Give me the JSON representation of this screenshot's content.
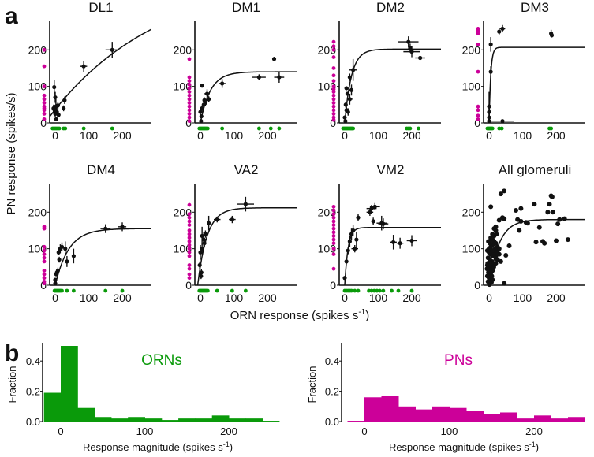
{
  "colors": {
    "orn": "#0a9a0a",
    "pn": "#cc0099",
    "points": "#111111"
  },
  "panel_labels": {
    "a": "a",
    "b": "b"
  },
  "labels": {
    "ylabel": "PN response (spikes/s)",
    "xlabel_main": "ORN response (spikes s",
    "xlabel_sup": "-1",
    "xlabel_end": ")",
    "hist_ylabel": "Fraction",
    "hist_xlabel_main": "Response magnitude (spikes s",
    "hist_xlabel_sup": "-1",
    "hist_xlabel_end": ")"
  },
  "chart_data": [
    {
      "type": "scatter",
      "title": "DL1",
      "xticks": [
        "0",
        "100",
        "200"
      ],
      "yticks": [
        "0",
        "100",
        "200"
      ],
      "xlim": [
        -16,
        287
      ],
      "ylim": [
        0,
        278
      ],
      "fit": {
        "x0": -20,
        "y0": 13,
        "rmax": 400,
        "tau": 327
      },
      "points": [
        [
          170,
          200,
          20,
          22
        ],
        [
          85,
          155,
          10,
          15
        ],
        [
          28,
          62,
          3,
          10
        ],
        [
          25,
          40,
          3,
          8
        ],
        [
          -3,
          98,
          2,
          20
        ],
        [
          0,
          70,
          3,
          15
        ],
        [
          2,
          45,
          3,
          20
        ],
        [
          -5,
          40,
          2,
          10
        ],
        [
          5,
          30,
          3,
          10
        ],
        [
          0,
          25,
          2,
          10
        ],
        [
          10,
          22,
          3,
          5
        ],
        [
          3,
          10,
          2,
          5
        ],
        [
          -2,
          35,
          2,
          8
        ],
        [
          8,
          48,
          4,
          10
        ]
      ],
      "pn": [
        200,
        155,
        100,
        75,
        65,
        55,
        45,
        40,
        35,
        25,
        10
      ],
      "orn": [
        -8,
        -4,
        0,
        4,
        8,
        12,
        25,
        30,
        85,
        170
      ]
    },
    {
      "type": "scatter",
      "title": "DM1",
      "xticks": [
        "0",
        "100",
        "200"
      ],
      "yticks": [
        "0",
        "100",
        "200"
      ],
      "xlim": [
        -16,
        287
      ],
      "ylim": [
        0,
        278
      ],
      "fit": {
        "x0": 0,
        "y0": 0,
        "rmax": 140,
        "tau": 30
      },
      "points": [
        [
          220,
          175,
          4,
          6
        ],
        [
          235,
          125,
          15,
          15
        ],
        [
          175,
          125,
          20,
          8
        ],
        [
          65,
          108,
          10,
          12
        ],
        [
          20,
          80,
          8,
          12
        ],
        [
          25,
          65,
          5,
          8
        ],
        [
          15,
          55,
          3,
          8
        ],
        [
          5,
          102,
          2,
          5
        ],
        [
          10,
          50,
          3,
          8
        ],
        [
          5,
          40,
          2,
          8
        ],
        [
          0,
          30,
          2,
          8
        ],
        [
          3,
          18,
          2,
          5
        ],
        [
          2,
          5,
          2,
          5
        ],
        [
          12,
          62,
          3,
          8
        ]
      ],
      "pn": [
        175,
        125,
        115,
        105,
        95,
        85,
        75,
        65,
        55,
        45,
        35,
        25,
        15,
        5
      ],
      "orn": [
        -3,
        0,
        3,
        6,
        9,
        12,
        15,
        18,
        22,
        65,
        175,
        210,
        235
      ]
    },
    {
      "type": "scatter",
      "title": "DM2",
      "xticks": [
        "0",
        "100",
        "200"
      ],
      "yticks": [
        "0",
        "100",
        "200"
      ],
      "xlim": [
        -16,
        287
      ],
      "ylim": [
        0,
        278
      ],
      "fit": {
        "x0": 0,
        "y0": 0,
        "rmax": 202,
        "tau": 20
      },
      "points": [
        [
          190,
          222,
          30,
          15
        ],
        [
          195,
          205,
          5,
          12
        ],
        [
          200,
          195,
          25,
          15
        ],
        [
          225,
          178,
          15,
          5
        ],
        [
          25,
          145,
          12,
          30
        ],
        [
          15,
          125,
          3,
          10
        ],
        [
          20,
          90,
          5,
          15
        ],
        [
          15,
          65,
          8,
          15
        ],
        [
          5,
          95,
          3,
          5
        ],
        [
          8,
          80,
          3,
          5
        ],
        [
          3,
          50,
          3,
          8
        ],
        [
          5,
          35,
          3,
          8
        ],
        [
          0,
          15,
          2,
          5
        ],
        [
          2,
          5,
          2,
          3
        ],
        [
          10,
          30,
          5,
          10
        ]
      ],
      "pn": [
        222,
        210,
        200,
        180,
        150,
        130,
        115,
        100,
        92,
        85,
        75,
        65,
        55,
        45,
        35,
        25,
        15,
        8
      ],
      "orn": [
        -5,
        -2,
        1,
        4,
        7,
        10,
        13,
        16,
        19,
        22,
        25,
        185,
        190,
        195,
        220
      ]
    },
    {
      "type": "scatter",
      "title": "DM3",
      "xticks": [
        "0",
        "100",
        "200"
      ],
      "yticks": [
        "0",
        "100",
        "200"
      ],
      "xlim": [
        -16,
        287
      ],
      "ylim": [
        0,
        278
      ],
      "fit": {
        "x0": 0,
        "y0": 0,
        "rmax": 207,
        "tau": 5
      },
      "points": [
        [
          5,
          215,
          2,
          20
        ],
        [
          5,
          140,
          3,
          15
        ],
        [
          0,
          45,
          2,
          40
        ],
        [
          0,
          30,
          2,
          10
        ],
        [
          0,
          15,
          2,
          5
        ],
        [
          0,
          5,
          2,
          5
        ],
        [
          40,
          5,
          35,
          3
        ],
        [
          30,
          250,
          5,
          8
        ],
        [
          40,
          258,
          8,
          10
        ],
        [
          185,
          245,
          5,
          10
        ],
        [
          187,
          240,
          3,
          6
        ]
      ],
      "pn": [
        258,
        252,
        245,
        215,
        140,
        45,
        35,
        20,
        10
      ],
      "orn": [
        -5,
        -2,
        1,
        4,
        7,
        10,
        30,
        38,
        180,
        185
      ]
    },
    {
      "type": "scatter",
      "title": "DM4",
      "xticks": [
        "0",
        "100",
        "200"
      ],
      "yticks": [
        "0",
        "100",
        "200"
      ],
      "xlim": [
        -16,
        287
      ],
      "ylim": [
        0,
        278
      ],
      "fit": {
        "x0": 0,
        "y0": 0,
        "rmax": 155,
        "tau": 40
      },
      "points": [
        [
          150,
          155,
          15,
          12
        ],
        [
          200,
          160,
          12,
          12
        ],
        [
          55,
          80,
          5,
          20
        ],
        [
          30,
          100,
          5,
          20
        ],
        [
          35,
          65,
          5,
          15
        ],
        [
          15,
          100,
          3,
          12
        ],
        [
          10,
          90,
          2,
          8
        ],
        [
          12,
          70,
          3,
          8
        ],
        [
          8,
          40,
          3,
          8
        ],
        [
          5,
          35,
          3,
          5
        ],
        [
          3,
          30,
          2,
          5
        ],
        [
          0,
          15,
          2,
          5
        ],
        [
          0,
          5,
          1,
          3
        ],
        [
          20,
          105,
          5,
          12
        ]
      ],
      "pn": [
        160,
        155,
        105,
        95,
        85,
        75,
        65,
        40,
        30,
        20,
        10,
        5
      ],
      "orn": [
        -2,
        1,
        4,
        7,
        10,
        13,
        16,
        20,
        35,
        55,
        150,
        200
      ]
    },
    {
      "type": "scatter",
      "title": "VA2",
      "xticks": [
        "0",
        "100",
        "200"
      ],
      "yticks": [
        "0",
        "100",
        "200"
      ],
      "xlim": [
        -16,
        287
      ],
      "ylim": [
        0,
        278
      ],
      "fit": {
        "x0": -8,
        "y0": 0,
        "rmax": 212,
        "tau": 28
      },
      "points": [
        [
          135,
          222,
          25,
          20
        ],
        [
          95,
          180,
          10,
          10
        ],
        [
          50,
          180,
          10,
          8
        ],
        [
          25,
          170,
          5,
          20
        ],
        [
          15,
          140,
          3,
          10
        ],
        [
          10,
          125,
          5,
          20
        ],
        [
          5,
          135,
          3,
          25
        ],
        [
          0,
          90,
          2,
          20
        ],
        [
          5,
          100,
          3,
          15
        ],
        [
          -2,
          55,
          2,
          10
        ],
        [
          3,
          35,
          2,
          10
        ],
        [
          2,
          25,
          2,
          8
        ],
        [
          12,
          115,
          3,
          10
        ]
      ],
      "pn": [
        220,
        195,
        185,
        175,
        165,
        150,
        140,
        130,
        120,
        110,
        100,
        90,
        80,
        55,
        45,
        30,
        20
      ],
      "orn": [
        -3,
        0,
        3,
        6,
        9,
        12,
        15,
        18,
        22,
        50,
        95,
        135
      ]
    },
    {
      "type": "scatter",
      "title": "VM2",
      "xticks": [
        "0",
        "100",
        "200"
      ],
      "yticks": [
        "0",
        "100",
        "200"
      ],
      "xlim": [
        -16,
        287
      ],
      "ylim": [
        0,
        278
      ],
      "fit": {
        "x0": 0,
        "y0": 0,
        "rmax": 158,
        "tau": 10
      },
      "points": [
        [
          0,
          20,
          2,
          5
        ],
        [
          5,
          65,
          2,
          5
        ],
        [
          10,
          95,
          3,
          10
        ],
        [
          15,
          120,
          5,
          15
        ],
        [
          20,
          140,
          5,
          15
        ],
        [
          25,
          150,
          5,
          15
        ],
        [
          30,
          100,
          10,
          10
        ],
        [
          35,
          125,
          5,
          20
        ],
        [
          40,
          185,
          5,
          10
        ],
        [
          75,
          200,
          10,
          10
        ],
        [
          80,
          210,
          15,
          10
        ],
        [
          90,
          215,
          15,
          10
        ],
        [
          85,
          175,
          5,
          10
        ],
        [
          110,
          170,
          15,
          20
        ],
        [
          115,
          168,
          15,
          15
        ],
        [
          145,
          118,
          10,
          20
        ],
        [
          165,
          115,
          10,
          15
        ],
        [
          200,
          122,
          15,
          15
        ]
      ],
      "pn": [
        215,
        205,
        195,
        185,
        175,
        165,
        155,
        145,
        135,
        125,
        115,
        100,
        85,
        45
      ],
      "orn": [
        0,
        5,
        10,
        15,
        20,
        30,
        40,
        72,
        80,
        88,
        96,
        104,
        115,
        140,
        160,
        200
      ]
    },
    {
      "type": "scatter",
      "title": "All glomeruli",
      "xticks": [
        "0",
        "100",
        "200"
      ],
      "yticks": [
        "0",
        "100",
        "200"
      ],
      "xlim": [
        -16,
        287
      ],
      "ylim": [
        0,
        278
      ],
      "fit": {
        "x0": 0,
        "y0": 0,
        "rmax": 180,
        "tau": 30
      },
      "points": [
        [
          45,
          258
        ],
        [
          35,
          250
        ],
        [
          5,
          215
        ],
        [
          40,
          185
        ],
        [
          30,
          178
        ],
        [
          45,
          182
        ],
        [
          80,
          205
        ],
        [
          95,
          210
        ],
        [
          135,
          222
        ],
        [
          175,
          200
        ],
        [
          185,
          245
        ],
        [
          188,
          242
        ],
        [
          180,
          222
        ],
        [
          190,
          200
        ],
        [
          210,
          180
        ],
        [
          225,
          182
        ],
        [
          205,
          168
        ],
        [
          150,
          158
        ],
        [
          85,
          180
        ],
        [
          95,
          175
        ],
        [
          110,
          172
        ],
        [
          115,
          170
        ],
        [
          90,
          150
        ],
        [
          140,
          118
        ],
        [
          165,
          115
        ],
        [
          160,
          120
        ],
        [
          200,
          122
        ],
        [
          235,
          125
        ],
        [
          60,
          108
        ],
        [
          50,
          82
        ],
        [
          45,
          5
        ],
        [
          20,
          160
        ],
        [
          15,
          155
        ],
        [
          20,
          150
        ],
        [
          10,
          140
        ],
        [
          15,
          135
        ],
        [
          22,
          140
        ],
        [
          5,
          130
        ],
        [
          10,
          125
        ],
        [
          15,
          120
        ],
        [
          20,
          115
        ],
        [
          25,
          105
        ],
        [
          30,
          100
        ],
        [
          35,
          65
        ],
        [
          25,
          70
        ],
        [
          20,
          80
        ],
        [
          30,
          85
        ],
        [
          10,
          110
        ],
        [
          5,
          105
        ],
        [
          0,
          100
        ],
        [
          -5,
          95
        ],
        [
          0,
          90
        ],
        [
          5,
          85
        ],
        [
          10,
          80
        ],
        [
          -3,
          75
        ],
        [
          2,
          70
        ],
        [
          8,
          65
        ],
        [
          12,
          60
        ],
        [
          -5,
          55
        ],
        [
          0,
          50
        ],
        [
          5,
          45
        ],
        [
          10,
          40
        ],
        [
          -2,
          35
        ],
        [
          3,
          30
        ],
        [
          8,
          25
        ],
        [
          0,
          20
        ],
        [
          5,
          15
        ],
        [
          -3,
          10
        ],
        [
          2,
          5
        ],
        [
          7,
          8
        ],
        [
          -6,
          45
        ],
        [
          -4,
          60
        ],
        [
          4,
          55
        ],
        [
          15,
          90
        ],
        [
          18,
          100
        ],
        [
          12,
          95
        ],
        [
          3,
          115
        ],
        [
          -2,
          120
        ],
        [
          6,
          35
        ],
        [
          14,
          50
        ],
        [
          -5,
          25
        ],
        [
          10,
          15
        ],
        [
          1,
          2
        ],
        [
          20,
          60
        ],
        [
          25,
          90
        ]
      ]
    }
  ],
  "histograms": [
    {
      "type": "bar",
      "title": "ORNs",
      "color": "#0a9a0a",
      "bin_width": 20,
      "bin_start": -20,
      "values": [
        0.19,
        0.5,
        0.09,
        0.03,
        0.02,
        0.03,
        0.02,
        0.01,
        0.02,
        0.02,
        0.04,
        0.02,
        0.02,
        0.005
      ],
      "xticks": [
        "0",
        "100",
        "200"
      ],
      "yticks": [
        "0.0",
        "0.2",
        "0.4"
      ],
      "ylim": [
        0,
        0.5
      ],
      "xlim": [
        -22,
        262
      ]
    },
    {
      "type": "bar",
      "title": "PNs",
      "color": "#cc0099",
      "bin_width": 20,
      "bin_start": -20,
      "values": [
        0.005,
        0.16,
        0.17,
        0.1,
        0.08,
        0.1,
        0.09,
        0.07,
        0.05,
        0.06,
        0.02,
        0.04,
        0.02,
        0.03
      ],
      "xticks": [
        "0",
        "100",
        "200"
      ],
      "yticks": [
        "0.0",
        "0.2",
        "0.4"
      ],
      "ylim": [
        0,
        0.5
      ],
      "xlim": [
        -27,
        262
      ]
    }
  ]
}
